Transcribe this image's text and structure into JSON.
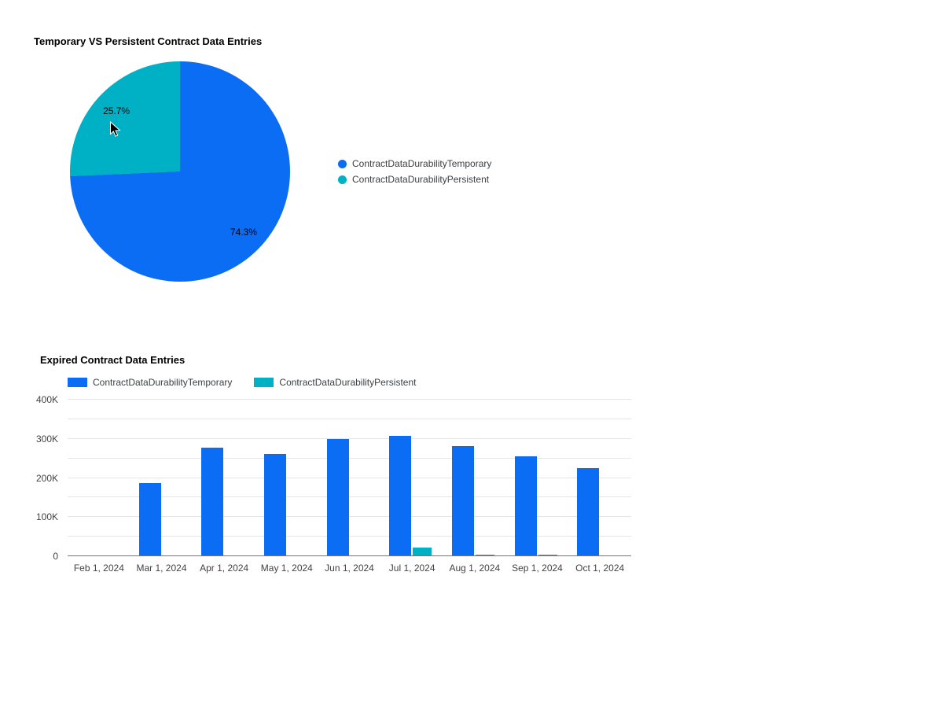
{
  "page": {
    "background": "#ffffff"
  },
  "colors": {
    "temporary_blue": "#0b6cf4",
    "persistent_teal": "#00b0c4",
    "grid_line": "#e6e6e6",
    "axis_line": "#757575"
  },
  "icons": {
    "cursor": "mouse-pointer-arrow"
  },
  "chart_data": [
    {
      "type": "pie",
      "title": "Temporary VS Persistent Contract Data Entries",
      "labels": [
        "ContractDataDurabilityTemporary",
        "ContractDataDurabilityPersistent"
      ],
      "values": [
        74.3,
        25.7
      ],
      "value_labels": [
        "74.3%",
        "25.7%"
      ],
      "colors": [
        "#0b6cf4",
        "#00b0c4"
      ],
      "legend_position": "right",
      "start_angle_deg": 0,
      "direction": "clockwise"
    },
    {
      "type": "bar",
      "title": "Expired Contract Data Entries",
      "categories": [
        "Feb 1, 2024",
        "Mar 1, 2024",
        "Apr 1, 2024",
        "May 1, 2024",
        "Jun 1, 2024",
        "Jul 1, 2024",
        "Aug 1, 2024",
        "Sep 1, 2024",
        "Oct 1, 2024"
      ],
      "series": [
        {
          "name": "ContractDataDurabilityTemporary",
          "color": "#0b6cf4",
          "values": [
            0,
            185000,
            275000,
            260000,
            298000,
            306000,
            279000,
            253000,
            223000
          ]
        },
        {
          "name": "ContractDataDurabilityPersistent",
          "color": "#00b0c4",
          "values": [
            0,
            0,
            0,
            0,
            0,
            20000,
            3000,
            2000,
            0
          ]
        }
      ],
      "ylim": [
        0,
        400000
      ],
      "yticks": [
        {
          "value": 0,
          "label": "0"
        },
        {
          "value": 100000,
          "label": "100K"
        },
        {
          "value": 200000,
          "label": "200K"
        },
        {
          "value": 300000,
          "label": "300K"
        },
        {
          "value": 400000,
          "label": "400K"
        }
      ],
      "gridline_step": 50000,
      "grid": true,
      "legend_position": "top"
    }
  ]
}
